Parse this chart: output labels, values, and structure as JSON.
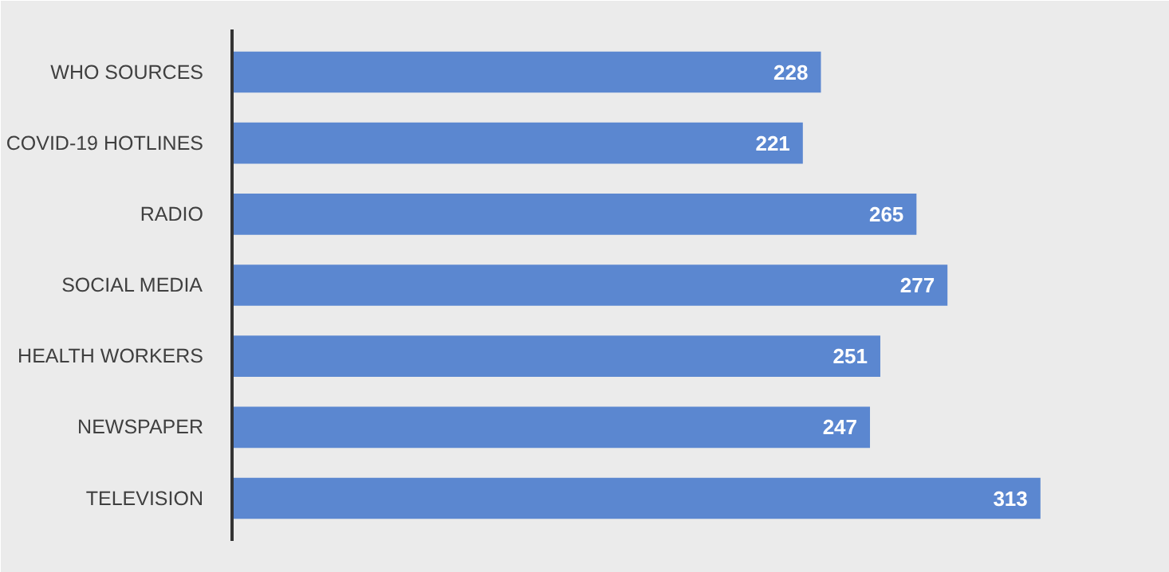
{
  "chart_data": {
    "type": "bar",
    "orientation": "horizontal",
    "categories": [
      "WHO SOURCES",
      "COVID-19 HOTLINES",
      "RADIO",
      "SOCIAL MEDIA",
      "HEALTH WORKERS",
      "NEWSPAPER",
      "TELEVISION"
    ],
    "values": [
      228,
      221,
      265,
      277,
      251,
      247,
      313
    ],
    "color": "#5b87d0",
    "data_labels": true,
    "grid": false,
    "tick_labels": "y"
  }
}
